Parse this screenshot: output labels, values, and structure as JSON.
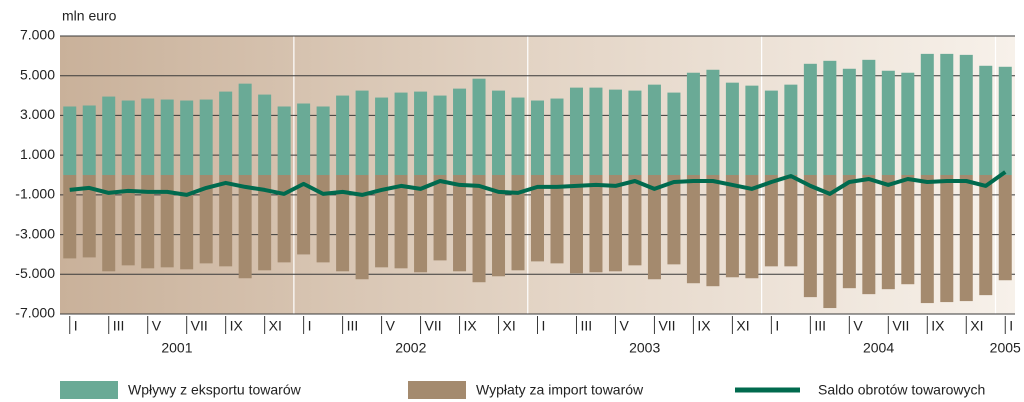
{
  "chart_data": {
    "type": "bar",
    "y_axis_label": "mln euro",
    "categories": [
      "I",
      null,
      "III",
      null,
      "V",
      null,
      "VII",
      null,
      "IX",
      null,
      "XI",
      null,
      "I",
      null,
      "III",
      null,
      "V",
      null,
      "VII",
      null,
      "IX",
      null,
      "XI",
      null,
      "I",
      null,
      "III",
      null,
      "V",
      null,
      "VII",
      null,
      "IX",
      null,
      "XI",
      null,
      "I",
      null,
      "III",
      null,
      "V",
      null,
      "VII",
      null,
      "IX",
      null,
      "XI",
      null,
      "I"
    ],
    "years": [
      "2001",
      "2002",
      "2003",
      "2004",
      "2005"
    ],
    "ylim": [
      -7000,
      7000
    ],
    "yticks": [
      {
        "value": 7000,
        "label": "7.000"
      },
      {
        "value": 5000,
        "label": "5.000"
      },
      {
        "value": 3000,
        "label": "3.000"
      },
      {
        "value": 1000,
        "label": "1.000"
      },
      {
        "value": -1000,
        "label": "-1.000"
      },
      {
        "value": -3000,
        "label": "-3.000"
      },
      {
        "value": -5000,
        "label": "-5.000"
      },
      {
        "value": -7000,
        "label": "-7.000"
      }
    ],
    "grid": true,
    "series": [
      {
        "name": "Wpływy z eksportu towarów",
        "color": "#6aaa96",
        "type": "bar",
        "values": [
          3450,
          3500,
          3950,
          3750,
          3850,
          3800,
          3750,
          3800,
          4200,
          4600,
          4050,
          3450,
          3600,
          3450,
          4000,
          4250,
          3900,
          4150,
          4200,
          4000,
          4350,
          4850,
          4250,
          3900,
          3750,
          3850,
          4400,
          4400,
          4300,
          4250,
          4550,
          4150,
          5150,
          5300,
          4650,
          4500,
          4250,
          4550,
          5600,
          5750,
          5350,
          5800,
          5250,
          5150,
          6100,
          6100,
          6050,
          5500,
          5450
        ]
      },
      {
        "name": "Wypłaty za import towarów",
        "color": "#a48a6e",
        "type": "bar",
        "values": [
          -4200,
          -4150,
          -4850,
          -4550,
          -4700,
          -4650,
          -4750,
          -4450,
          -4600,
          -5200,
          -4800,
          -4400,
          -4000,
          -4400,
          -4850,
          -5250,
          -4650,
          -4700,
          -4900,
          -4300,
          -4850,
          -5400,
          -5100,
          -4800,
          -4350,
          -4450,
          -4950,
          -4900,
          -4850,
          -4550,
          -5250,
          -4500,
          -5450,
          -5600,
          -5150,
          -5200,
          -4600,
          -4600,
          -6150,
          -6700,
          -5700,
          -6000,
          -5750,
          -5500,
          -6450,
          -6400,
          -6350,
          -6050,
          -5300
        ]
      },
      {
        "name": "Saldo obrotów towarowych",
        "color": "#006a4e",
        "type": "line",
        "values": [
          -750,
          -650,
          -900,
          -800,
          -850,
          -850,
          -1000,
          -650,
          -400,
          -600,
          -750,
          -950,
          -450,
          -950,
          -850,
          -1000,
          -750,
          -550,
          -700,
          -300,
          -500,
          -550,
          -850,
          -900,
          -600,
          -600,
          -550,
          -500,
          -550,
          -300,
          -700,
          -350,
          -300,
          -300,
          -500,
          -700,
          -350,
          -50,
          -550,
          -950,
          -350,
          -200,
          -500,
          -200,
          -350,
          -300,
          -300,
          -550,
          150
        ]
      }
    ]
  }
}
